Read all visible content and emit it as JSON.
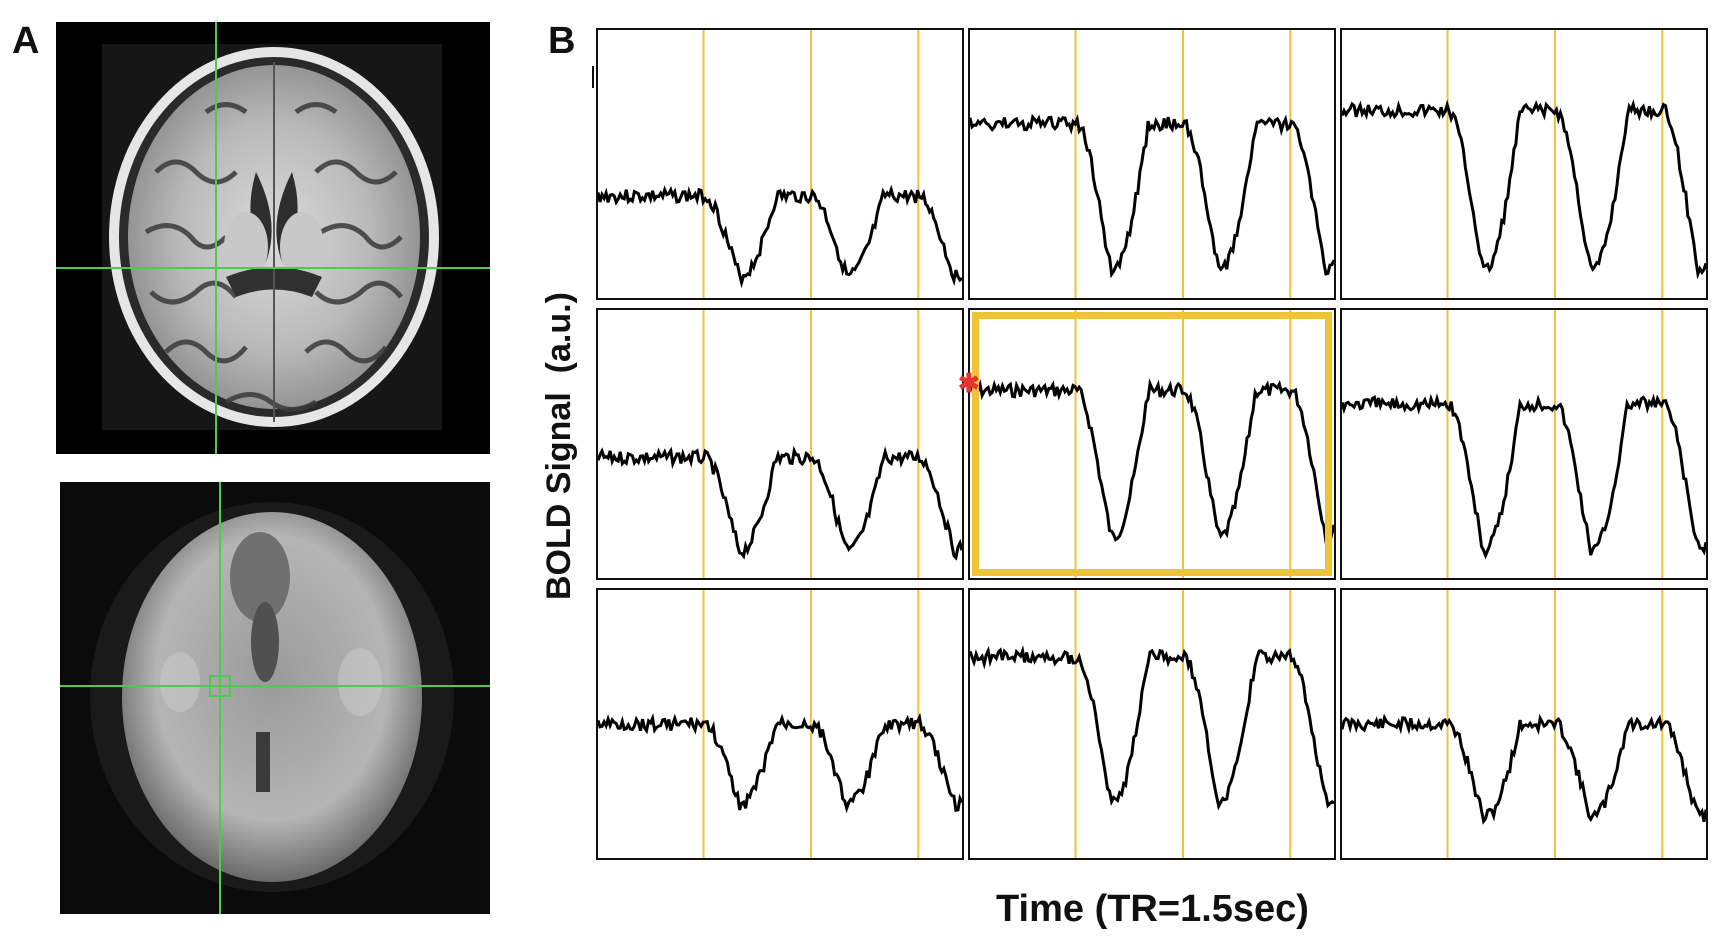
{
  "figure": {
    "panel_a_label": "A",
    "panel_b_label": "B",
    "y_axis_label": "BOLD Signal  (a.u.)",
    "x_axis_label": "Time (TR=1.5sec)"
  },
  "colors": {
    "crosshair": "#4ccc4c",
    "event_line": "#f0c23a",
    "trace": "#000000",
    "selected_frame": "#f0c23a",
    "seed_marker": "#e33333"
  },
  "panel_b": {
    "rows": 3,
    "cols": 3,
    "selected_cell": 4,
    "event_positions_fraction": [
      0.29,
      0.585,
      0.88
    ]
  }
}
